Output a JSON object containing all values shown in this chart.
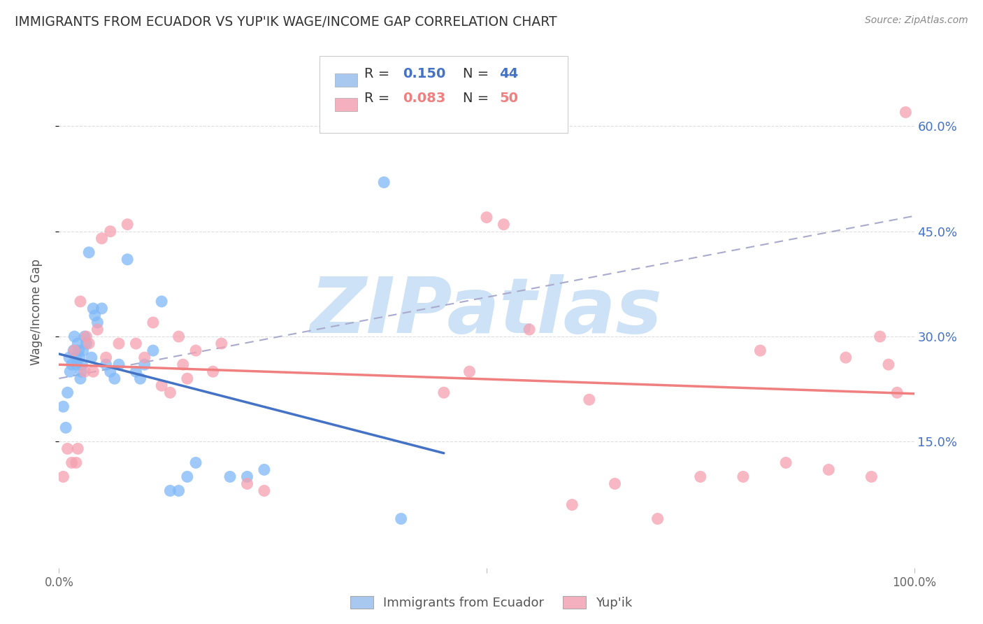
{
  "title": "IMMIGRANTS FROM ECUADOR VS YUP'IK WAGE/INCOME GAP CORRELATION CHART",
  "source": "Source: ZipAtlas.com",
  "ylabel": "Wage/Income Gap",
  "ytick_labels": [
    "15.0%",
    "30.0%",
    "45.0%",
    "60.0%"
  ],
  "ytick_values": [
    0.15,
    0.3,
    0.45,
    0.6
  ],
  "xlim": [
    0.0,
    1.0
  ],
  "ylim": [
    -0.03,
    0.7
  ],
  "ecuador_scatter_x": [
    0.005,
    0.008,
    0.01,
    0.012,
    0.013,
    0.015,
    0.017,
    0.018,
    0.02,
    0.021,
    0.022,
    0.023,
    0.024,
    0.025,
    0.026,
    0.027,
    0.028,
    0.03,
    0.032,
    0.035,
    0.038,
    0.04,
    0.042,
    0.045,
    0.05,
    0.055,
    0.06,
    0.065,
    0.07,
    0.08,
    0.09,
    0.095,
    0.1,
    0.11,
    0.12,
    0.13,
    0.14,
    0.15,
    0.16,
    0.2,
    0.22,
    0.24,
    0.38,
    0.4
  ],
  "ecuador_scatter_y": [
    0.2,
    0.17,
    0.22,
    0.27,
    0.25,
    0.26,
    0.28,
    0.3,
    0.27,
    0.26,
    0.29,
    0.28,
    0.27,
    0.24,
    0.25,
    0.26,
    0.28,
    0.3,
    0.29,
    0.42,
    0.27,
    0.34,
    0.33,
    0.32,
    0.34,
    0.26,
    0.25,
    0.24,
    0.26,
    0.41,
    0.25,
    0.24,
    0.26,
    0.28,
    0.35,
    0.08,
    0.08,
    0.1,
    0.12,
    0.1,
    0.1,
    0.11,
    0.52,
    0.04
  ],
  "yupik_scatter_x": [
    0.005,
    0.01,
    0.015,
    0.018,
    0.02,
    0.022,
    0.025,
    0.03,
    0.032,
    0.035,
    0.04,
    0.045,
    0.05,
    0.055,
    0.06,
    0.07,
    0.08,
    0.09,
    0.1,
    0.11,
    0.12,
    0.13,
    0.14,
    0.145,
    0.15,
    0.16,
    0.18,
    0.19,
    0.22,
    0.24,
    0.45,
    0.48,
    0.5,
    0.52,
    0.55,
    0.6,
    0.62,
    0.65,
    0.7,
    0.75,
    0.8,
    0.82,
    0.85,
    0.9,
    0.92,
    0.95,
    0.96,
    0.97,
    0.98,
    0.99
  ],
  "yupik_scatter_y": [
    0.1,
    0.14,
    0.12,
    0.28,
    0.12,
    0.14,
    0.35,
    0.25,
    0.3,
    0.29,
    0.25,
    0.31,
    0.44,
    0.27,
    0.45,
    0.29,
    0.46,
    0.29,
    0.27,
    0.32,
    0.23,
    0.22,
    0.3,
    0.26,
    0.24,
    0.28,
    0.25,
    0.29,
    0.09,
    0.08,
    0.22,
    0.25,
    0.47,
    0.46,
    0.31,
    0.06,
    0.21,
    0.09,
    0.04,
    0.1,
    0.1,
    0.28,
    0.12,
    0.11,
    0.27,
    0.1,
    0.3,
    0.26,
    0.22,
    0.62
  ],
  "ecuador_color": "#7eb8f7",
  "yupik_color": "#f5a0b0",
  "ecuador_line_color": "#4472c4",
  "yupik_line_color": "#f08080",
  "trendline_dashed_color": "#aaaacc",
  "watermark_text": "ZIPatlas",
  "watermark_color": "#c8dff5",
  "background_color": "#ffffff",
  "grid_color": "#dddddd",
  "legend_R1": "0.150",
  "legend_N1": "44",
  "legend_R2": "0.083",
  "legend_N2": "50",
  "legend_color1": "#4472c4",
  "legend_color2": "#f08080",
  "legend_face1": "#a8c8f0",
  "legend_face2": "#f5b0c0"
}
